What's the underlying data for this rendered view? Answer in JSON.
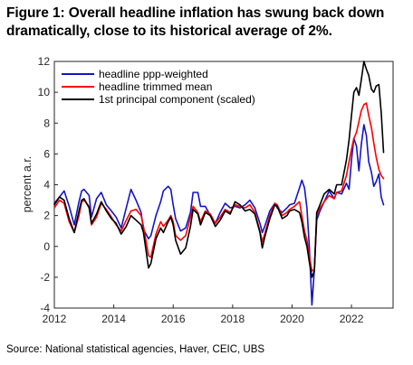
{
  "figure": {
    "title_line1": "Figure 1: Overall headline inflation has swung back down",
    "title_line2": "dramatically, close to its historical average of 2%.",
    "source": "Source: National statistical agencies, Haver, CEIC, UBS"
  },
  "chart_data": {
    "type": "line",
    "title": "",
    "xlabel": "",
    "ylabel": "percent a.r.",
    "xlim": [
      2012.0,
      2023.4
    ],
    "ylim": [
      -4,
      12
    ],
    "xticks": [
      2012,
      2014,
      2016,
      2018,
      2020,
      2022
    ],
    "yticks": [
      -4,
      -2,
      0,
      2,
      4,
      6,
      8,
      10,
      12
    ],
    "grid": false,
    "legend_position": "top-left",
    "series": [
      {
        "name": "headline ppp-weighted",
        "color": "#1414c8",
        "points": [
          [
            2012.0,
            2.8
          ],
          [
            2012.17,
            3.2
          ],
          [
            2012.33,
            3.6
          ],
          [
            2012.5,
            2.6
          ],
          [
            2012.67,
            1.4
          ],
          [
            2012.83,
            2.9
          ],
          [
            2012.92,
            3.6
          ],
          [
            2013.0,
            3.7
          ],
          [
            2013.17,
            3.3
          ],
          [
            2013.25,
            1.9
          ],
          [
            2013.42,
            3.1
          ],
          [
            2013.58,
            3.5
          ],
          [
            2013.75,
            2.7
          ],
          [
            2013.92,
            2.3
          ],
          [
            2014.08,
            1.9
          ],
          [
            2014.25,
            1.2
          ],
          [
            2014.42,
            2.5
          ],
          [
            2014.58,
            3.7
          ],
          [
            2014.75,
            3.0
          ],
          [
            2014.92,
            2.2
          ],
          [
            2015.0,
            1.1
          ],
          [
            2015.17,
            0.5
          ],
          [
            2015.25,
            0.7
          ],
          [
            2015.42,
            2.0
          ],
          [
            2015.58,
            2.9
          ],
          [
            2015.67,
            3.6
          ],
          [
            2015.83,
            3.9
          ],
          [
            2015.92,
            3.7
          ],
          [
            2016.0,
            2.7
          ],
          [
            2016.08,
            1.8
          ],
          [
            2016.25,
            1.0
          ],
          [
            2016.42,
            1.2
          ],
          [
            2016.58,
            2.2
          ],
          [
            2016.67,
            3.5
          ],
          [
            2016.83,
            3.5
          ],
          [
            2016.92,
            2.6
          ],
          [
            2017.08,
            2.6
          ],
          [
            2017.25,
            2.0
          ],
          [
            2017.42,
            1.5
          ],
          [
            2017.58,
            2.2
          ],
          [
            2017.75,
            2.8
          ],
          [
            2017.92,
            2.5
          ],
          [
            2018.08,
            2.6
          ],
          [
            2018.25,
            2.5
          ],
          [
            2018.42,
            2.7
          ],
          [
            2018.58,
            3.0
          ],
          [
            2018.75,
            2.5
          ],
          [
            2018.92,
            1.5
          ],
          [
            2019.0,
            0.9
          ],
          [
            2019.08,
            1.3
          ],
          [
            2019.25,
            2.3
          ],
          [
            2019.42,
            2.8
          ],
          [
            2019.5,
            2.5
          ],
          [
            2019.67,
            2.2
          ],
          [
            2019.83,
            2.5
          ],
          [
            2019.92,
            2.7
          ],
          [
            2020.08,
            2.8
          ],
          [
            2020.25,
            3.8
          ],
          [
            2020.33,
            4.3
          ],
          [
            2020.42,
            3.8
          ],
          [
            2020.5,
            2.5
          ],
          [
            2020.58,
            0.0
          ],
          [
            2020.67,
            -3.8
          ],
          [
            2020.75,
            -1.5
          ],
          [
            2020.83,
            1.7
          ],
          [
            2020.92,
            2.2
          ],
          [
            2021.08,
            2.9
          ],
          [
            2021.25,
            3.6
          ],
          [
            2021.42,
            3.1
          ],
          [
            2021.5,
            3.5
          ],
          [
            2021.67,
            3.4
          ],
          [
            2021.83,
            4.1
          ],
          [
            2021.92,
            3.7
          ],
          [
            2022.0,
            5.6
          ],
          [
            2022.08,
            7.0
          ],
          [
            2022.17,
            6.5
          ],
          [
            2022.25,
            4.9
          ],
          [
            2022.33,
            6.6
          ],
          [
            2022.42,
            7.9
          ],
          [
            2022.5,
            7.2
          ],
          [
            2022.58,
            5.5
          ],
          [
            2022.67,
            4.8
          ],
          [
            2022.75,
            3.9
          ],
          [
            2022.83,
            4.2
          ],
          [
            2022.92,
            4.7
          ],
          [
            2023.0,
            3.2
          ],
          [
            2023.08,
            2.7
          ]
        ]
      },
      {
        "name": "headline trimmed mean",
        "color": "#ff0000",
        "points": [
          [
            2012.0,
            2.5
          ],
          [
            2012.17,
            3.0
          ],
          [
            2012.33,
            2.8
          ],
          [
            2012.5,
            1.6
          ],
          [
            2012.67,
            0.9
          ],
          [
            2012.83,
            2.0
          ],
          [
            2012.92,
            2.9
          ],
          [
            2013.0,
            3.0
          ],
          [
            2013.17,
            2.6
          ],
          [
            2013.25,
            1.4
          ],
          [
            2013.42,
            1.9
          ],
          [
            2013.58,
            2.8
          ],
          [
            2013.75,
            2.4
          ],
          [
            2013.92,
            1.9
          ],
          [
            2014.08,
            1.4
          ],
          [
            2014.25,
            1.0
          ],
          [
            2014.42,
            1.7
          ],
          [
            2014.58,
            2.3
          ],
          [
            2014.75,
            2.4
          ],
          [
            2014.92,
            2.0
          ],
          [
            2015.0,
            1.3
          ],
          [
            2015.17,
            -0.6
          ],
          [
            2015.25,
            -0.7
          ],
          [
            2015.42,
            0.8
          ],
          [
            2015.58,
            1.6
          ],
          [
            2015.67,
            1.3
          ],
          [
            2015.83,
            1.7
          ],
          [
            2015.92,
            2.0
          ],
          [
            2016.0,
            1.6
          ],
          [
            2016.08,
            0.7
          ],
          [
            2016.25,
            0.4
          ],
          [
            2016.42,
            0.7
          ],
          [
            2016.58,
            1.9
          ],
          [
            2016.67,
            2.6
          ],
          [
            2016.83,
            2.2
          ],
          [
            2016.92,
            1.6
          ],
          [
            2017.08,
            2.3
          ],
          [
            2017.25,
            2.1
          ],
          [
            2017.42,
            1.5
          ],
          [
            2017.58,
            1.9
          ],
          [
            2017.75,
            2.4
          ],
          [
            2017.92,
            2.2
          ],
          [
            2018.08,
            2.7
          ],
          [
            2018.25,
            2.6
          ],
          [
            2018.42,
            2.5
          ],
          [
            2018.58,
            2.7
          ],
          [
            2018.75,
            2.2
          ],
          [
            2018.92,
            1.0
          ],
          [
            2019.0,
            0.3
          ],
          [
            2019.08,
            0.8
          ],
          [
            2019.25,
            2.0
          ],
          [
            2019.42,
            2.8
          ],
          [
            2019.5,
            2.7
          ],
          [
            2019.67,
            2.0
          ],
          [
            2019.83,
            2.2
          ],
          [
            2019.92,
            2.4
          ],
          [
            2020.08,
            2.6
          ],
          [
            2020.25,
            2.9
          ],
          [
            2020.33,
            2.0
          ],
          [
            2020.42,
            1.0
          ],
          [
            2020.5,
            0.4
          ],
          [
            2020.58,
            -0.6
          ],
          [
            2020.67,
            -1.6
          ],
          [
            2020.75,
            -1.5
          ],
          [
            2020.83,
            2.0
          ],
          [
            2020.92,
            2.4
          ],
          [
            2021.08,
            2.9
          ],
          [
            2021.25,
            3.3
          ],
          [
            2021.42,
            3.1
          ],
          [
            2021.5,
            3.5
          ],
          [
            2021.67,
            3.6
          ],
          [
            2021.83,
            4.6
          ],
          [
            2021.92,
            5.5
          ],
          [
            2022.0,
            6.3
          ],
          [
            2022.08,
            7.0
          ],
          [
            2022.17,
            7.4
          ],
          [
            2022.25,
            8.1
          ],
          [
            2022.33,
            8.8
          ],
          [
            2022.42,
            9.2
          ],
          [
            2022.5,
            9.3
          ],
          [
            2022.58,
            8.5
          ],
          [
            2022.67,
            7.7
          ],
          [
            2022.75,
            6.7
          ],
          [
            2022.83,
            5.8
          ],
          [
            2022.92,
            5.0
          ],
          [
            2023.0,
            4.6
          ],
          [
            2023.08,
            4.4
          ]
        ]
      },
      {
        "name": "1st principal component (scaled)",
        "color": "#000000",
        "points": [
          [
            2012.0,
            2.7
          ],
          [
            2012.17,
            3.2
          ],
          [
            2012.33,
            3.0
          ],
          [
            2012.5,
            1.8
          ],
          [
            2012.67,
            0.9
          ],
          [
            2012.83,
            2.3
          ],
          [
            2012.92,
            3.0
          ],
          [
            2013.0,
            3.1
          ],
          [
            2013.17,
            2.5
          ],
          [
            2013.25,
            1.5
          ],
          [
            2013.42,
            2.1
          ],
          [
            2013.58,
            2.9
          ],
          [
            2013.75,
            2.3
          ],
          [
            2013.92,
            1.8
          ],
          [
            2014.08,
            1.5
          ],
          [
            2014.25,
            0.8
          ],
          [
            2014.42,
            1.3
          ],
          [
            2014.58,
            2.0
          ],
          [
            2014.75,
            1.7
          ],
          [
            2014.92,
            1.4
          ],
          [
            2015.0,
            0.9
          ],
          [
            2015.17,
            -1.4
          ],
          [
            2015.25,
            -1.1
          ],
          [
            2015.42,
            0.5
          ],
          [
            2015.58,
            1.2
          ],
          [
            2015.67,
            0.9
          ],
          [
            2015.83,
            1.6
          ],
          [
            2015.92,
            1.9
          ],
          [
            2016.0,
            1.4
          ],
          [
            2016.08,
            0.4
          ],
          [
            2016.25,
            -0.5
          ],
          [
            2016.42,
            -0.1
          ],
          [
            2016.58,
            1.3
          ],
          [
            2016.67,
            2.4
          ],
          [
            2016.83,
            2.1
          ],
          [
            2016.92,
            1.4
          ],
          [
            2017.08,
            2.2
          ],
          [
            2017.25,
            2.0
          ],
          [
            2017.42,
            1.3
          ],
          [
            2017.58,
            1.7
          ],
          [
            2017.75,
            2.3
          ],
          [
            2017.92,
            2.1
          ],
          [
            2018.08,
            2.9
          ],
          [
            2018.25,
            2.7
          ],
          [
            2018.42,
            2.3
          ],
          [
            2018.58,
            2.4
          ],
          [
            2018.75,
            2.1
          ],
          [
            2018.92,
            0.9
          ],
          [
            2019.0,
            -0.1
          ],
          [
            2019.08,
            0.6
          ],
          [
            2019.25,
            1.8
          ],
          [
            2019.42,
            2.7
          ],
          [
            2019.5,
            2.6
          ],
          [
            2019.67,
            1.8
          ],
          [
            2019.83,
            2.0
          ],
          [
            2019.92,
            2.3
          ],
          [
            2020.08,
            2.4
          ],
          [
            2020.25,
            2.2
          ],
          [
            2020.33,
            1.6
          ],
          [
            2020.42,
            0.6
          ],
          [
            2020.5,
            0.0
          ],
          [
            2020.58,
            -1.0
          ],
          [
            2020.67,
            -2.0
          ],
          [
            2020.75,
            -1.6
          ],
          [
            2020.83,
            2.2
          ],
          [
            2020.92,
            2.6
          ],
          [
            2021.08,
            3.4
          ],
          [
            2021.25,
            3.7
          ],
          [
            2021.42,
            3.4
          ],
          [
            2021.5,
            4.0
          ],
          [
            2021.67,
            4.0
          ],
          [
            2021.83,
            5.6
          ],
          [
            2021.92,
            6.9
          ],
          [
            2022.0,
            8.5
          ],
          [
            2022.08,
            10.0
          ],
          [
            2022.17,
            10.3
          ],
          [
            2022.25,
            9.8
          ],
          [
            2022.33,
            10.8
          ],
          [
            2022.42,
            12.0
          ],
          [
            2022.5,
            11.5
          ],
          [
            2022.58,
            11.1
          ],
          [
            2022.67,
            10.2
          ],
          [
            2022.75,
            10.0
          ],
          [
            2022.83,
            10.4
          ],
          [
            2022.92,
            10.5
          ],
          [
            2023.0,
            8.7
          ],
          [
            2023.08,
            6.1
          ]
        ]
      }
    ]
  }
}
